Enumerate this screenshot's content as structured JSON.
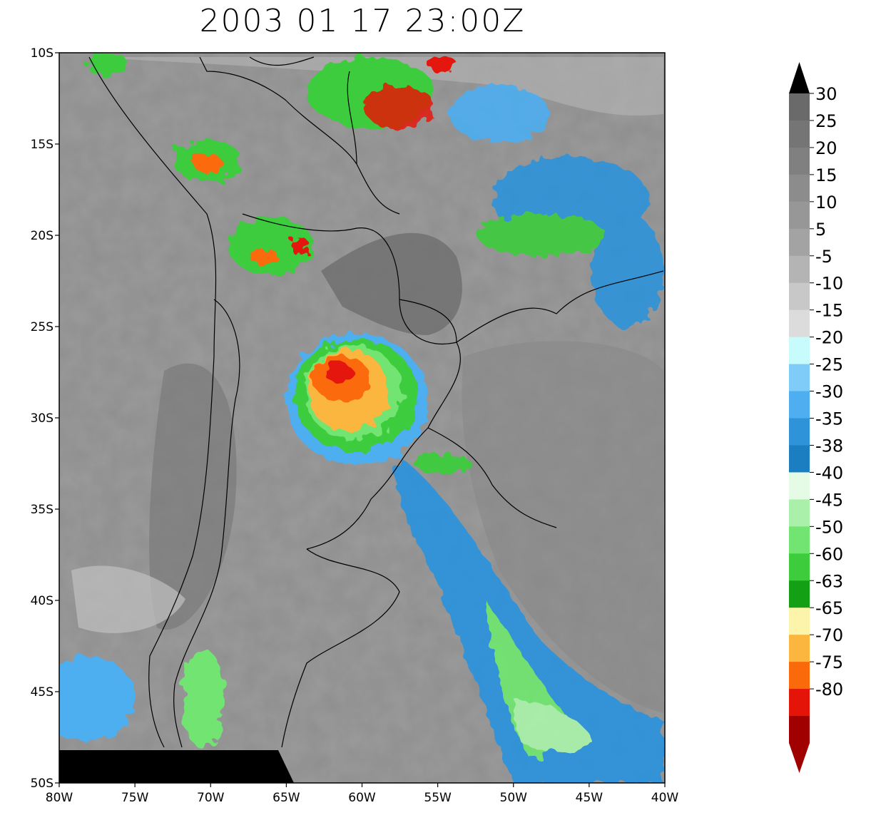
{
  "title": "2003 01 17 23:00Z",
  "map": {
    "lon_range": [
      -80,
      -40
    ],
    "lat_range": [
      -50,
      -10
    ],
    "lon_ticks": [
      {
        "value": -80,
        "label": "80W"
      },
      {
        "value": -75,
        "label": "75W"
      },
      {
        "value": -70,
        "label": "70W"
      },
      {
        "value": -65,
        "label": "65W"
      },
      {
        "value": -60,
        "label": "60W"
      },
      {
        "value": -55,
        "label": "55W"
      },
      {
        "value": -50,
        "label": "50W"
      },
      {
        "value": -45,
        "label": "45W"
      },
      {
        "value": -40,
        "label": "40W"
      }
    ],
    "lat_ticks": [
      {
        "value": -10,
        "label": "10S"
      },
      {
        "value": -15,
        "label": "15S"
      },
      {
        "value": -20,
        "label": "20S"
      },
      {
        "value": -25,
        "label": "25S"
      },
      {
        "value": -30,
        "label": "30S"
      },
      {
        "value": -35,
        "label": "35S"
      },
      {
        "value": -40,
        "label": "40S"
      },
      {
        "value": -45,
        "label": "45S"
      },
      {
        "value": -50,
        "label": "50S"
      }
    ],
    "background_color": "#8e8e8e",
    "missing_data_color": "#000000"
  },
  "colorbar": {
    "labels": [
      "30",
      "25",
      "20",
      "15",
      "10",
      "5",
      "-5",
      "-10",
      "-15",
      "-20",
      "-25",
      "-30",
      "-35",
      "-38",
      "-40",
      "-45",
      "-50",
      "-60",
      "-63",
      "-65",
      "-70",
      "-75",
      "-80"
    ],
    "colors": [
      "#6a6a6a",
      "#757575",
      "#808080",
      "#8c8c8c",
      "#979797",
      "#a3a3a3",
      "#b4b4b4",
      "#c8c8c8",
      "#dcdcdc",
      "#c8fcfc",
      "#80ccf8",
      "#4eaef0",
      "#2f93da",
      "#1b7ec0",
      "#e6fbe6",
      "#aaf0aa",
      "#72e472",
      "#3ccc3c",
      "#14a014",
      "#fbf4aa",
      "#fbb640",
      "#fb6a0a",
      "#e41408",
      "#a00000"
    ],
    "top_arrow_color": "#000000",
    "bottom_arrow_color": "#a00000"
  }
}
